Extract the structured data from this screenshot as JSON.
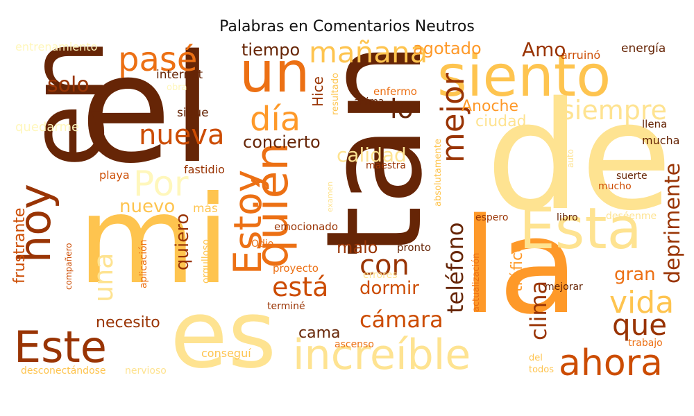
{
  "title": "Palabras en Comentarios Neutros",
  "palette": [
    "#662506",
    "#993404",
    "#cc4c02",
    "#ec7014",
    "#fe9929",
    "#fec44f",
    "#fee391",
    "#fff7bc"
  ],
  "words": [
    {
      "text": "el",
      "color": "#662506"
    },
    {
      "text": "en",
      "color": "#662506"
    },
    {
      "text": "de",
      "color": "#fee391"
    },
    {
      "text": "tan",
      "color": "#662506"
    },
    {
      "text": "la",
      "color": "#fe9929"
    },
    {
      "text": "mi",
      "color": "#fec44f"
    },
    {
      "text": "es",
      "color": "#fee391"
    },
    {
      "text": "siento",
      "color": "#fec44f"
    },
    {
      "text": "un",
      "color": "#ec7014"
    },
    {
      "text": "Esta",
      "color": "#fee391"
    },
    {
      "text": "quién",
      "color": "#ec7014"
    },
    {
      "text": "hoy",
      "color": "#993404"
    },
    {
      "text": "Este",
      "color": "#993404"
    },
    {
      "text": "increíble",
      "color": "#fee391"
    },
    {
      "text": "ahora",
      "color": "#cc4c02"
    },
    {
      "text": "Estoy",
      "color": "#ec7014"
    },
    {
      "text": "mañana",
      "color": "#fec44f"
    },
    {
      "text": "pasé",
      "color": "#ec7014"
    },
    {
      "text": "día",
      "color": "#fe9929"
    },
    {
      "text": "mejor",
      "color": "#993404"
    },
    {
      "text": "siempre",
      "color": "#fee391"
    },
    {
      "text": "nueva",
      "color": "#cc4c02"
    },
    {
      "text": "Por",
      "color": "#fff7bc"
    },
    {
      "text": "vida",
      "color": "#fec44f"
    },
    {
      "text": "que",
      "color": "#993404"
    },
    {
      "text": "deprimente",
      "color": "#993404"
    },
    {
      "text": "con",
      "color": "#993404"
    },
    {
      "text": "está",
      "color": "#cc4c02"
    },
    {
      "text": "una",
      "color": "#fee391"
    },
    {
      "text": "teléfono",
      "color": "#662506"
    },
    {
      "text": "clima",
      "color": "#993404"
    },
    {
      "text": "frustrante",
      "color": "#cc4c02"
    },
    {
      "text": "cámara",
      "color": "#cc4c02"
    },
    {
      "text": "tiempo",
      "color": "#662506"
    },
    {
      "text": "solo",
      "color": "#993404"
    },
    {
      "text": "Amo",
      "color": "#993404"
    },
    {
      "text": "agotado",
      "color": "#fe9929"
    },
    {
      "text": "concierto",
      "color": "#662506"
    },
    {
      "text": "calidad",
      "color": "#fee391"
    },
    {
      "text": "lo",
      "color": "#662506"
    },
    {
      "text": "nuevo",
      "color": "#fec44f"
    },
    {
      "text": "quiero",
      "color": "#993404"
    },
    {
      "text": "necesito",
      "color": "#993404"
    },
    {
      "text": "dormir",
      "color": "#cc4c02"
    },
    {
      "text": "malo",
      "color": "#993404"
    },
    {
      "text": "gran",
      "color": "#ec7014"
    },
    {
      "text": "tráfico",
      "color": "#fe9929"
    },
    {
      "text": "Anoche",
      "color": "#fe9929"
    },
    {
      "text": "ciudad",
      "color": "#fee391"
    },
    {
      "text": "cama",
      "color": "#662506"
    },
    {
      "text": "internet",
      "color": "#662506"
    },
    {
      "text": "sigue",
      "color": "#662506"
    },
    {
      "text": "Hice",
      "color": "#993404"
    },
    {
      "text": "energía",
      "color": "#662506"
    },
    {
      "text": "arruinó",
      "color": "#cc4c02"
    },
    {
      "text": "mucha",
      "color": "#662506"
    },
    {
      "text": "llena",
      "color": "#662506"
    },
    {
      "text": "entrenamiento",
      "color": "#fff7bc"
    },
    {
      "text": "quedarme",
      "color": "#fff7bc"
    },
    {
      "text": "obra",
      "color": "#fff7bc"
    },
    {
      "text": "fastidio",
      "color": "#993404"
    },
    {
      "text": "playa",
      "color": "#cc4c02"
    },
    {
      "text": "maestra",
      "color": "#993404"
    },
    {
      "text": "enfermo",
      "color": "#ec7014"
    },
    {
      "text": "anima",
      "color": "#662506"
    },
    {
      "text": "resultado",
      "color": "#fec44f"
    },
    {
      "text": "más",
      "color": "#fec44f"
    },
    {
      "text": "emocionado",
      "color": "#993404"
    },
    {
      "text": "Odio",
      "color": "#ec7014"
    },
    {
      "text": "pronto",
      "color": "#662506"
    },
    {
      "text": "proyecto",
      "color": "#ec7014"
    },
    {
      "text": "orgulloso",
      "color": "#fec44f"
    },
    {
      "text": "aplicación",
      "color": "#ec7014"
    },
    {
      "text": "compañero",
      "color": "#cc4c02"
    },
    {
      "text": "terminé",
      "color": "#993404"
    },
    {
      "text": "errores",
      "color": "#fee391"
    },
    {
      "text": "ascenso",
      "color": "#ec7014"
    },
    {
      "text": "conseguí",
      "color": "#fec44f"
    },
    {
      "text": "desconectándose",
      "color": "#fec44f"
    },
    {
      "text": "nervioso",
      "color": "#fee391"
    },
    {
      "text": "absolutamente",
      "color": "#fec44f"
    },
    {
      "text": "examen",
      "color": "#fee391"
    },
    {
      "text": "espero",
      "color": "#993404"
    },
    {
      "text": "libro",
      "color": "#662506"
    },
    {
      "text": "deséenme",
      "color": "#fee391"
    },
    {
      "text": "suerte",
      "color": "#662506"
    },
    {
      "text": "mucho",
      "color": "#cc4c02"
    },
    {
      "text": "auto",
      "color": "#fee391"
    },
    {
      "text": "mejorar",
      "color": "#662506"
    },
    {
      "text": "actualización",
      "color": "#ec7014"
    },
    {
      "text": "trabajo",
      "color": "#ec7014"
    },
    {
      "text": "del",
      "color": "#fec44f"
    },
    {
      "text": "todos",
      "color": "#fec44f"
    }
  ]
}
